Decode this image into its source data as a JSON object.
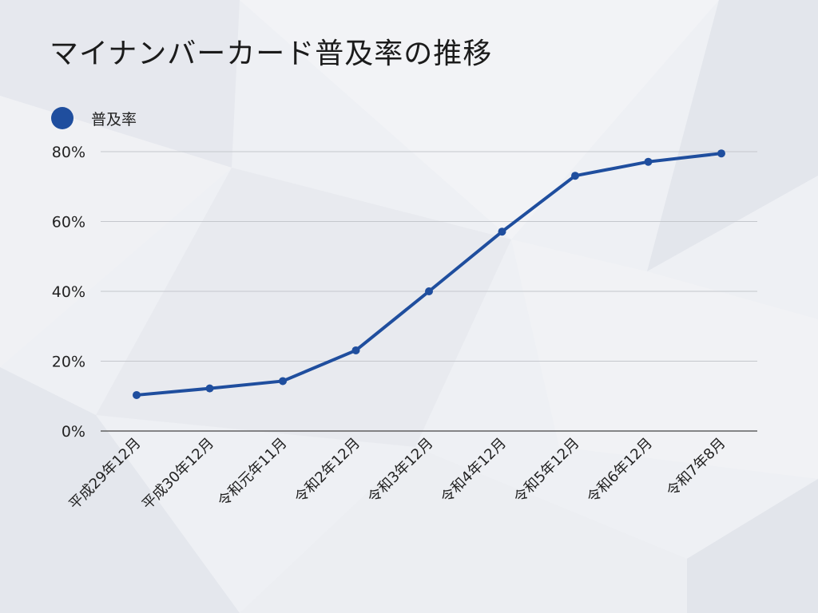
{
  "colors": {
    "series": "#1f4e9e",
    "grid": "#c4c7cc",
    "axis": "#444444",
    "text": "#222222"
  },
  "chart_data": {
    "type": "line",
    "title": "マイナンバーカード普及率の推移",
    "categories": [
      "平成29年12月",
      "平成30年12月",
      "令和元年11月",
      "令和2年12月",
      "令和3年12月",
      "令和4年12月",
      "令和5年12月",
      "令和6年12月",
      "令和7年8月"
    ],
    "series": [
      {
        "name": "普及率",
        "values": [
          10.3,
          12.2,
          14.3,
          23.1,
          40.0,
          57.1,
          73.1,
          77.1,
          79.5
        ]
      }
    ],
    "y_ticks": [
      "0%",
      "20%",
      "40%",
      "60%",
      "80%"
    ],
    "ylim": [
      0,
      80
    ],
    "grid": true,
    "legend_position": "top-left",
    "xlabel": "",
    "ylabel": ""
  }
}
